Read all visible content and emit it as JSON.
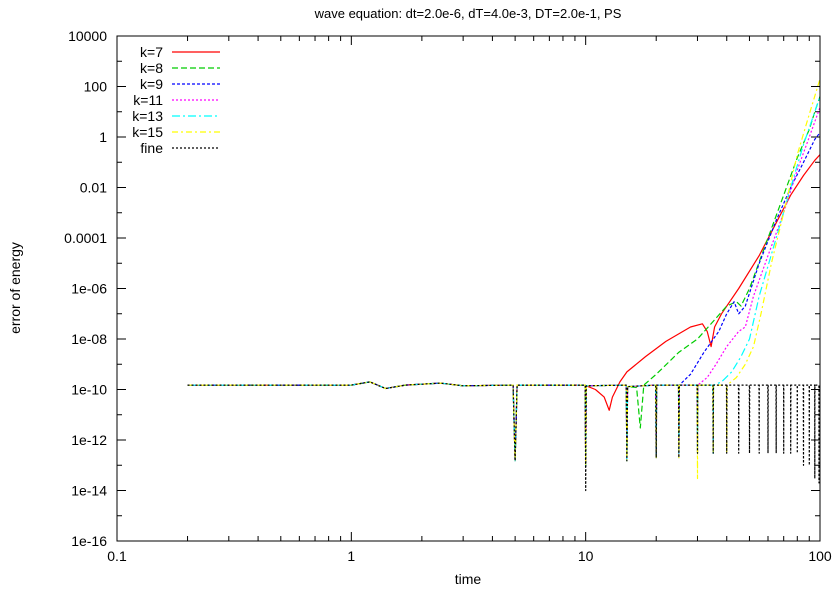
{
  "chart_data": {
    "type": "line",
    "title": "wave equation: dt=2.0e-6, dT=4.0e-3, DT=2.0e-1, PS",
    "xlabel": "time",
    "ylabel": "error of energy",
    "x_scale": "log",
    "y_scale": "log",
    "xlim": [
      0.1,
      100
    ],
    "ylim": [
      1e-16,
      10000
    ],
    "x_ticks": [
      {
        "value": 0.1,
        "label": "0.1"
      },
      {
        "value": 1,
        "label": "1"
      },
      {
        "value": 10,
        "label": "10"
      },
      {
        "value": 100,
        "label": "100"
      }
    ],
    "y_ticks": [
      {
        "value": 1e-16,
        "label": "1e-16"
      },
      {
        "value": 1e-14,
        "label": "1e-14"
      },
      {
        "value": 1e-12,
        "label": "1e-12"
      },
      {
        "value": 1e-10,
        "label": "1e-10"
      },
      {
        "value": 1e-08,
        "label": "1e-08"
      },
      {
        "value": 1e-06,
        "label": "1e-06"
      },
      {
        "value": 0.0001,
        "label": "0.0001"
      },
      {
        "value": 0.01,
        "label": "0.01"
      },
      {
        "value": 1,
        "label": "1"
      },
      {
        "value": 100,
        "label": "100"
      },
      {
        "value": 10000,
        "label": "10000"
      }
    ],
    "grid": false,
    "legend_position": "top-left",
    "series": [
      {
        "name": "k=7",
        "color": "#ff0000",
        "dash": "",
        "points": [
          [
            0.2,
            1.5e-10
          ],
          [
            1.0,
            1.5e-10
          ],
          [
            1.2,
            2e-10
          ],
          [
            1.4,
            1.1e-10
          ],
          [
            1.7,
            1.5e-10
          ],
          [
            2.4,
            1.8e-10
          ],
          [
            3.0,
            1.4e-10
          ],
          [
            4.9,
            1.5e-10
          ],
          [
            5.0,
            1.5e-13
          ],
          [
            5.1,
            1.5e-10
          ],
          [
            7.0,
            1.5e-10
          ],
          [
            9.95,
            1.5e-10
          ],
          [
            10.0,
            1e-13
          ],
          [
            10.05,
            1.4e-10
          ],
          [
            11.0,
            1e-10
          ],
          [
            12.0,
            5e-11
          ],
          [
            12.6,
            1.5e-11
          ],
          [
            13.0,
            5e-11
          ],
          [
            14.0,
            2e-10
          ],
          [
            15.0,
            5e-10
          ],
          [
            18.0,
            2e-09
          ],
          [
            22.0,
            8e-09
          ],
          [
            28.0,
            3e-08
          ],
          [
            31.5,
            4e-08
          ],
          [
            33.0,
            2e-08
          ],
          [
            34.3,
            5e-09
          ],
          [
            35.5,
            3e-08
          ],
          [
            38.0,
            1e-07
          ],
          [
            45.0,
            1e-06
          ],
          [
            55.0,
            2e-05
          ],
          [
            65.0,
            0.0004
          ],
          [
            75.0,
            0.005
          ],
          [
            85.0,
            0.03
          ],
          [
            95.0,
            0.12
          ],
          [
            100.0,
            0.2
          ]
        ]
      },
      {
        "name": "k=8",
        "color": "#00cc00",
        "dash": "6,3",
        "points": [
          [
            0.2,
            1.5e-10
          ],
          [
            1.0,
            1.5e-10
          ],
          [
            1.2,
            2e-10
          ],
          [
            1.4,
            1.1e-10
          ],
          [
            1.7,
            1.5e-10
          ],
          [
            2.4,
            1.8e-10
          ],
          [
            3.0,
            1.4e-10
          ],
          [
            4.9,
            1.5e-10
          ],
          [
            5.0,
            1.5e-13
          ],
          [
            5.1,
            1.5e-10
          ],
          [
            9.95,
            1.5e-10
          ],
          [
            10.0,
            1e-13
          ],
          [
            10.05,
            1.4e-10
          ],
          [
            14.9,
            1.5e-10
          ],
          [
            15.0,
            1.5e-13
          ],
          [
            15.1,
            1.3e-10
          ],
          [
            16.5,
            1.2e-10
          ],
          [
            17.1,
            3e-12
          ],
          [
            17.7,
            1.5e-10
          ],
          [
            20.0,
            4e-10
          ],
          [
            25.0,
            3e-09
          ],
          [
            30.0,
            1e-08
          ],
          [
            35.0,
            5e-08
          ],
          [
            40.0,
            2e-07
          ],
          [
            44.0,
            3e-07
          ],
          [
            46.0,
            2e-07
          ],
          [
            50.0,
            1e-06
          ],
          [
            60.0,
            0.0001
          ],
          [
            70.0,
            0.005
          ],
          [
            80.0,
            0.15
          ],
          [
            90.0,
            2
          ],
          [
            95.0,
            10
          ],
          [
            100.0,
            40
          ]
        ]
      },
      {
        "name": "k=9",
        "color": "#0000ff",
        "dash": "3,2",
        "points": [
          [
            0.2,
            1.5e-10
          ],
          [
            1.0,
            1.5e-10
          ],
          [
            1.2,
            2e-10
          ],
          [
            1.4,
            1.1e-10
          ],
          [
            1.7,
            1.5e-10
          ],
          [
            2.4,
            1.8e-10
          ],
          [
            3.0,
            1.4e-10
          ],
          [
            4.9,
            1.5e-10
          ],
          [
            5.0,
            1.5e-13
          ],
          [
            5.1,
            1.5e-10
          ],
          [
            9.95,
            1.5e-10
          ],
          [
            10.0,
            1e-13
          ],
          [
            10.05,
            1.4e-10
          ],
          [
            14.9,
            1.5e-10
          ],
          [
            15.0,
            1.5e-13
          ],
          [
            15.1,
            1.3e-10
          ],
          [
            19.9,
            1.5e-10
          ],
          [
            20.0,
            2e-13
          ],
          [
            20.1,
            1.5e-10
          ],
          [
            24.9,
            1.5e-10
          ],
          [
            25.0,
            2e-13
          ],
          [
            25.1,
            1.5e-10
          ],
          [
            28.0,
            4e-10
          ],
          [
            32.0,
            3e-09
          ],
          [
            37.0,
            2e-08
          ],
          [
            40.0,
            1e-07
          ],
          [
            43.0,
            3e-07
          ],
          [
            45.0,
            1e-07
          ],
          [
            48.0,
            2e-07
          ],
          [
            55.0,
            1e-05
          ],
          [
            65.0,
            0.0005
          ],
          [
            75.0,
            0.01
          ],
          [
            85.0,
            0.1
          ],
          [
            95.0,
            0.8
          ],
          [
            100.0,
            1.5
          ]
        ]
      },
      {
        "name": "k=11",
        "color": "#ff00ff",
        "dash": "2,2",
        "points": [
          [
            0.2,
            1.5e-10
          ],
          [
            1.0,
            1.5e-10
          ],
          [
            1.2,
            2e-10
          ],
          [
            1.4,
            1.1e-10
          ],
          [
            1.7,
            1.5e-10
          ],
          [
            2.4,
            1.8e-10
          ],
          [
            3.0,
            1.4e-10
          ],
          [
            4.9,
            1.5e-10
          ],
          [
            5.0,
            1.5e-13
          ],
          [
            5.1,
            1.5e-10
          ],
          [
            9.95,
            1.5e-10
          ],
          [
            10.0,
            1e-13
          ],
          [
            10.05,
            1.4e-10
          ],
          [
            14.9,
            1.5e-10
          ],
          [
            15.0,
            1.5e-13
          ],
          [
            15.1,
            1.3e-10
          ],
          [
            19.9,
            1.5e-10
          ],
          [
            20.0,
            2e-13
          ],
          [
            20.1,
            1.5e-10
          ],
          [
            24.9,
            1.5e-10
          ],
          [
            25.0,
            2e-13
          ],
          [
            25.1,
            1.5e-10
          ],
          [
            29.9,
            1.5e-10
          ],
          [
            30.0,
            3e-13
          ],
          [
            30.1,
            1.5e-10
          ],
          [
            33.0,
            3e-10
          ],
          [
            36.0,
            1e-09
          ],
          [
            40.0,
            5e-09
          ],
          [
            45.0,
            2e-08
          ],
          [
            48.0,
            3e-08
          ],
          [
            52.0,
            5e-07
          ],
          [
            60.0,
            2e-05
          ],
          [
            70.0,
            0.001
          ],
          [
            80.0,
            0.05
          ],
          [
            90.0,
            1
          ],
          [
            100.0,
            15
          ]
        ]
      },
      {
        "name": "k=13",
        "color": "#00ffff",
        "dash": "8,3,2,3",
        "points": [
          [
            0.2,
            1.5e-10
          ],
          [
            1.0,
            1.5e-10
          ],
          [
            1.2,
            2e-10
          ],
          [
            1.4,
            1.1e-10
          ],
          [
            1.7,
            1.5e-10
          ],
          [
            2.4,
            1.8e-10
          ],
          [
            3.0,
            1.4e-10
          ],
          [
            4.9,
            1.5e-10
          ],
          [
            5.0,
            1.5e-13
          ],
          [
            5.1,
            1.5e-10
          ],
          [
            9.95,
            1.5e-10
          ],
          [
            10.0,
            1e-13
          ],
          [
            10.05,
            1.4e-10
          ],
          [
            14.9,
            1.5e-10
          ],
          [
            15.0,
            1.5e-13
          ],
          [
            15.1,
            1.3e-10
          ],
          [
            19.9,
            1.5e-10
          ],
          [
            20.0,
            2e-13
          ],
          [
            20.1,
            1.5e-10
          ],
          [
            24.9,
            1.5e-10
          ],
          [
            25.0,
            2e-13
          ],
          [
            25.1,
            1.5e-10
          ],
          [
            29.9,
            1.5e-10
          ],
          [
            30.0,
            3e-13
          ],
          [
            30.1,
            1.5e-10
          ],
          [
            34.9,
            1.5e-10
          ],
          [
            35.0,
            3e-13
          ],
          [
            35.1,
            1.5e-10
          ],
          [
            38.0,
            2e-10
          ],
          [
            42.0,
            5e-10
          ],
          [
            46.0,
            2e-09
          ],
          [
            50.0,
            1e-08
          ],
          [
            55.0,
            5e-07
          ],
          [
            65.0,
            0.0001
          ],
          [
            75.0,
            0.01
          ],
          [
            85.0,
            0.5
          ],
          [
            95.0,
            10
          ],
          [
            100.0,
            40
          ]
        ]
      },
      {
        "name": "k=15",
        "color": "#ffff00",
        "dash": "6,3,2,3",
        "points": [
          [
            0.2,
            1.5e-10
          ],
          [
            1.0,
            1.5e-10
          ],
          [
            1.2,
            2e-10
          ],
          [
            1.4,
            1.1e-10
          ],
          [
            1.7,
            1.5e-10
          ],
          [
            2.4,
            1.8e-10
          ],
          [
            3.0,
            1.4e-10
          ],
          [
            4.9,
            1.5e-10
          ],
          [
            5.0,
            1.5e-13
          ],
          [
            5.1,
            1.5e-10
          ],
          [
            9.95,
            1.5e-10
          ],
          [
            10.0,
            1e-13
          ],
          [
            10.05,
            1.4e-10
          ],
          [
            14.9,
            1.5e-10
          ],
          [
            15.0,
            1.5e-13
          ],
          [
            15.1,
            1.3e-10
          ],
          [
            19.9,
            1.5e-10
          ],
          [
            20.0,
            2e-13
          ],
          [
            20.1,
            1.5e-10
          ],
          [
            24.9,
            1.5e-10
          ],
          [
            25.0,
            2e-13
          ],
          [
            25.1,
            1.5e-10
          ],
          [
            29.9,
            1.5e-10
          ],
          [
            30.0,
            3e-14
          ],
          [
            30.1,
            1.5e-10
          ],
          [
            34.9,
            1.5e-10
          ],
          [
            35.0,
            3e-13
          ],
          [
            35.1,
            1.5e-10
          ],
          [
            39.9,
            1.5e-10
          ],
          [
            40.0,
            3e-13
          ],
          [
            40.1,
            1.5e-10
          ],
          [
            44.0,
            3e-10
          ],
          [
            48.0,
            1e-09
          ],
          [
            52.0,
            5e-09
          ],
          [
            56.0,
            1e-07
          ],
          [
            62.0,
            1e-05
          ],
          [
            70.0,
            0.001
          ],
          [
            80.0,
            0.2
          ],
          [
            90.0,
            8
          ],
          [
            100.0,
            200
          ]
        ]
      },
      {
        "name": "fine",
        "color": "#000000",
        "dash": "2,2",
        "points": [
          [
            0.2,
            1.5e-10
          ],
          [
            1.0,
            1.5e-10
          ],
          [
            1.2,
            2e-10
          ],
          [
            1.4,
            1.1e-10
          ],
          [
            1.7,
            1.5e-10
          ],
          [
            2.4,
            1.8e-10
          ],
          [
            3.0,
            1.4e-10
          ],
          [
            4.9,
            1.5e-10
          ],
          [
            5.0,
            1.5e-13
          ],
          [
            5.1,
            1.5e-10
          ],
          [
            9.95,
            1.5e-10
          ],
          [
            10.0,
            1e-14
          ],
          [
            10.05,
            1.4e-10
          ],
          [
            14.9,
            1.5e-10
          ],
          [
            15.0,
            1.5e-13
          ],
          [
            15.1,
            1.3e-10
          ],
          [
            19.9,
            1.5e-10
          ],
          [
            20.0,
            2e-13
          ],
          [
            20.1,
            1.5e-10
          ],
          [
            24.9,
            1.5e-10
          ],
          [
            25.0,
            2e-13
          ],
          [
            25.1,
            1.5e-10
          ],
          [
            29.9,
            1.5e-10
          ],
          [
            30.0,
            3e-13
          ],
          [
            30.1,
            1.5e-10
          ],
          [
            34.9,
            1.5e-10
          ],
          [
            35.0,
            3e-13
          ],
          [
            35.1,
            1.5e-10
          ],
          [
            39.9,
            1.5e-10
          ],
          [
            40.0,
            3e-13
          ],
          [
            40.1,
            1.5e-10
          ],
          [
            44.9,
            1.5e-10
          ],
          [
            45.0,
            3e-13
          ],
          [
            45.1,
            1.5e-10
          ],
          [
            49.9,
            1.5e-10
          ],
          [
            50.0,
            3e-13
          ],
          [
            50.1,
            1.5e-10
          ],
          [
            54.9,
            1.5e-10
          ],
          [
            55.0,
            3e-13
          ],
          [
            55.1,
            1.5e-10
          ],
          [
            59.9,
            1.5e-10
          ],
          [
            60.0,
            3e-13
          ],
          [
            60.1,
            1.5e-10
          ],
          [
            64.9,
            1.5e-10
          ],
          [
            65.0,
            3e-13
          ],
          [
            65.1,
            1.5e-10
          ],
          [
            69.9,
            1.5e-10
          ],
          [
            70.0,
            3e-13
          ],
          [
            70.1,
            1.5e-10
          ],
          [
            74.9,
            1.5e-10
          ],
          [
            75.0,
            3e-13
          ],
          [
            75.1,
            1.5e-10
          ],
          [
            79.9,
            1.5e-10
          ],
          [
            80.0,
            3e-13
          ],
          [
            80.1,
            1.5e-10
          ],
          [
            84.9,
            1.5e-10
          ],
          [
            85.0,
            1e-13
          ],
          [
            85.1,
            1.5e-10
          ],
          [
            89.9,
            1.5e-10
          ],
          [
            90.0,
            1e-13
          ],
          [
            90.1,
            1.5e-10
          ],
          [
            94.9,
            1.5e-10
          ],
          [
            95.0,
            3e-14
          ],
          [
            95.1,
            1.5e-10
          ],
          [
            98.9,
            1.5e-10
          ],
          [
            99.0,
            2e-14
          ],
          [
            99.1,
            1.5e-10
          ],
          [
            100.0,
            1.5e-10
          ]
        ]
      }
    ]
  }
}
